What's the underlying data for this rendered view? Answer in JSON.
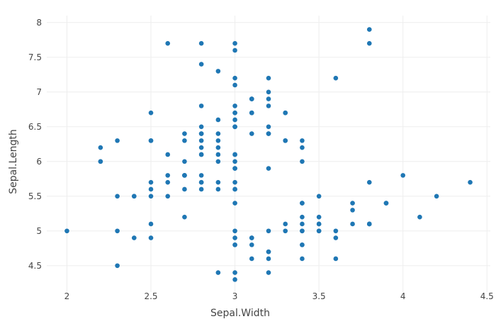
{
  "chart_data": {
    "type": "scatter",
    "title": "",
    "xlabel": "Sepal.Width",
    "ylabel": "Sepal.Length",
    "xlim": [
      1.88,
      4.52
    ],
    "ylim": [
      4.12,
      8.1
    ],
    "xticks": [
      2,
      2.5,
      3,
      3.5,
      4,
      4.5
    ],
    "xtick_labels": [
      "2",
      "2.5",
      "3",
      "3.5",
      "4",
      "4.5"
    ],
    "yticks": [
      4.5,
      5,
      5.5,
      6,
      6.5,
      7,
      7.5,
      8
    ],
    "ytick_labels": [
      "4.5",
      "5",
      "5.5",
      "6",
      "6.5",
      "7",
      "7.5",
      "8"
    ],
    "grid": true,
    "marker_color": "#1f77b4",
    "grid_color": "#eeeeee",
    "text_color": "#444444",
    "points": [
      [
        3.5,
        5.1
      ],
      [
        3.0,
        4.9
      ],
      [
        3.2,
        4.7
      ],
      [
        3.1,
        4.6
      ],
      [
        3.6,
        5.0
      ],
      [
        3.9,
        5.4
      ],
      [
        3.4,
        4.6
      ],
      [
        3.4,
        5.0
      ],
      [
        2.9,
        4.4
      ],
      [
        3.1,
        4.9
      ],
      [
        3.7,
        5.4
      ],
      [
        3.4,
        4.8
      ],
      [
        3.0,
        4.8
      ],
      [
        3.0,
        4.3
      ],
      [
        4.0,
        5.8
      ],
      [
        4.4,
        5.7
      ],
      [
        3.9,
        5.4
      ],
      [
        3.5,
        5.1
      ],
      [
        3.8,
        5.7
      ],
      [
        3.8,
        5.1
      ],
      [
        3.4,
        5.4
      ],
      [
        3.7,
        5.1
      ],
      [
        3.6,
        4.6
      ],
      [
        3.3,
        5.1
      ],
      [
        3.4,
        4.8
      ],
      [
        3.0,
        5.0
      ],
      [
        3.4,
        5.0
      ],
      [
        3.5,
        5.2
      ],
      [
        3.4,
        5.2
      ],
      [
        3.2,
        4.7
      ],
      [
        3.1,
        4.8
      ],
      [
        3.4,
        5.4
      ],
      [
        4.1,
        5.2
      ],
      [
        4.2,
        5.5
      ],
      [
        3.1,
        4.9
      ],
      [
        3.2,
        5.0
      ],
      [
        3.5,
        5.5
      ],
      [
        3.6,
        4.9
      ],
      [
        3.0,
        4.4
      ],
      [
        3.4,
        5.1
      ],
      [
        3.5,
        5.0
      ],
      [
        2.3,
        4.5
      ],
      [
        3.2,
        4.4
      ],
      [
        3.5,
        5.0
      ],
      [
        3.8,
        5.1
      ],
      [
        3.0,
        4.8
      ],
      [
        3.8,
        5.1
      ],
      [
        3.2,
        4.6
      ],
      [
        3.7,
        5.3
      ],
      [
        3.3,
        5.0
      ],
      [
        3.2,
        7.0
      ],
      [
        3.2,
        6.4
      ],
      [
        3.1,
        6.9
      ],
      [
        2.3,
        5.5
      ],
      [
        2.8,
        6.5
      ],
      [
        2.8,
        5.7
      ],
      [
        3.3,
        6.3
      ],
      [
        2.4,
        4.9
      ],
      [
        2.9,
        6.6
      ],
      [
        2.7,
        5.2
      ],
      [
        2.0,
        5.0
      ],
      [
        3.0,
        5.9
      ],
      [
        2.2,
        6.0
      ],
      [
        2.9,
        6.1
      ],
      [
        2.9,
        5.6
      ],
      [
        3.1,
        6.7
      ],
      [
        3.0,
        5.6
      ],
      [
        2.7,
        5.8
      ],
      [
        2.2,
        6.2
      ],
      [
        2.5,
        5.6
      ],
      [
        3.2,
        5.9
      ],
      [
        2.8,
        6.1
      ],
      [
        2.5,
        6.3
      ],
      [
        2.8,
        6.1
      ],
      [
        2.9,
        6.4
      ],
      [
        3.0,
        6.6
      ],
      [
        2.8,
        6.8
      ],
      [
        3.0,
        6.7
      ],
      [
        2.9,
        6.0
      ],
      [
        2.6,
        5.7
      ],
      [
        2.4,
        5.5
      ],
      [
        2.4,
        5.5
      ],
      [
        2.7,
        5.8
      ],
      [
        2.7,
        6.0
      ],
      [
        3.0,
        5.4
      ],
      [
        3.4,
        6.0
      ],
      [
        3.1,
        6.7
      ],
      [
        2.3,
        6.3
      ],
      [
        3.0,
        5.6
      ],
      [
        2.5,
        5.5
      ],
      [
        2.6,
        5.5
      ],
      [
        3.0,
        6.1
      ],
      [
        2.6,
        5.8
      ],
      [
        2.3,
        5.0
      ],
      [
        2.7,
        5.6
      ],
      [
        3.0,
        5.7
      ],
      [
        2.9,
        5.7
      ],
      [
        2.9,
        6.2
      ],
      [
        2.5,
        5.1
      ],
      [
        2.8,
        5.7
      ],
      [
        3.3,
        6.3
      ],
      [
        2.7,
        5.8
      ],
      [
        3.0,
        7.1
      ],
      [
        2.9,
        6.3
      ],
      [
        3.0,
        6.5
      ],
      [
        3.0,
        7.6
      ],
      [
        2.5,
        4.9
      ],
      [
        2.9,
        7.3
      ],
      [
        2.5,
        6.7
      ],
      [
        3.6,
        7.2
      ],
      [
        3.2,
        6.5
      ],
      [
        2.7,
        6.4
      ],
      [
        3.0,
        6.8
      ],
      [
        2.5,
        5.7
      ],
      [
        2.8,
        5.8
      ],
      [
        3.2,
        6.4
      ],
      [
        3.0,
        6.5
      ],
      [
        3.8,
        7.7
      ],
      [
        2.6,
        7.7
      ],
      [
        2.2,
        6.0
      ],
      [
        3.2,
        6.9
      ],
      [
        2.8,
        5.6
      ],
      [
        2.8,
        7.7
      ],
      [
        2.7,
        6.3
      ],
      [
        3.3,
        6.7
      ],
      [
        3.2,
        7.2
      ],
      [
        2.8,
        6.2
      ],
      [
        3.0,
        6.1
      ],
      [
        2.8,
        6.4
      ],
      [
        3.0,
        7.2
      ],
      [
        2.8,
        7.4
      ],
      [
        3.8,
        7.9
      ],
      [
        2.8,
        6.4
      ],
      [
        2.8,
        6.3
      ],
      [
        2.6,
        6.1
      ],
      [
        3.0,
        7.7
      ],
      [
        3.4,
        6.3
      ],
      [
        3.1,
        6.4
      ],
      [
        3.0,
        6.0
      ],
      [
        3.1,
        6.9
      ],
      [
        3.1,
        6.7
      ],
      [
        3.1,
        6.9
      ],
      [
        2.7,
        5.8
      ],
      [
        3.2,
        6.8
      ],
      [
        3.3,
        6.7
      ],
      [
        3.0,
        6.7
      ],
      [
        2.5,
        6.3
      ],
      [
        3.0,
        6.5
      ],
      [
        3.4,
        6.2
      ],
      [
        3.0,
        5.9
      ]
    ]
  }
}
